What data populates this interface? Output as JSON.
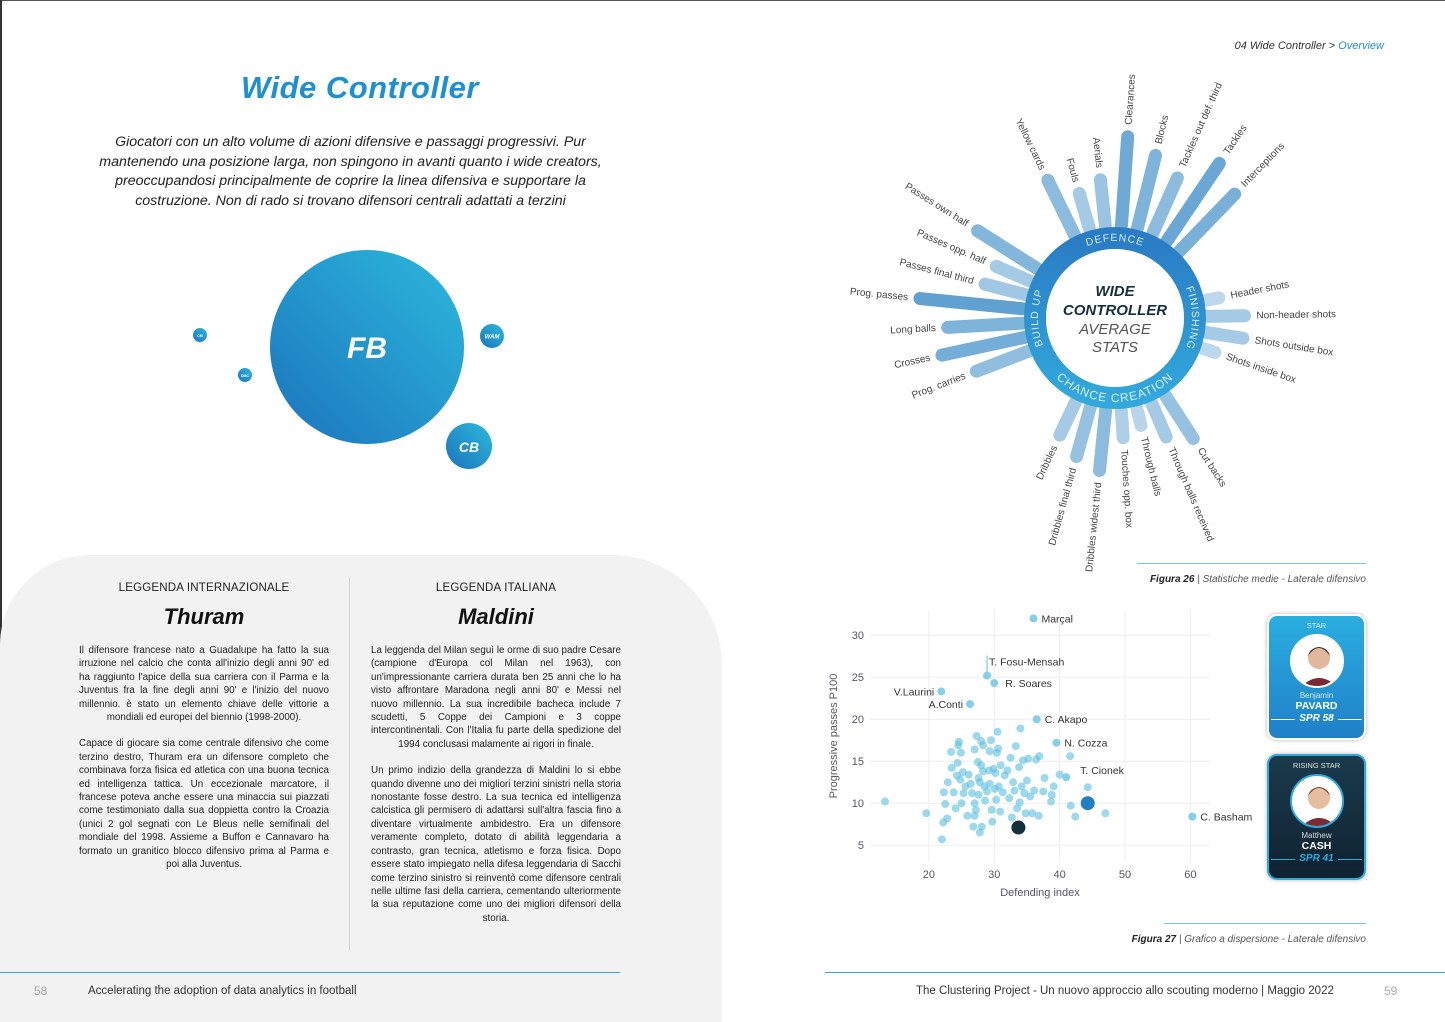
{
  "left_page": {
    "title": "Wide Controller",
    "intro": "Giocatori con un alto volume di azioni difensive e passaggi progressivi. Pur mantenendo una posizione larga, non spingono in avanti quanto i wide creators, preoccupandosi principalmente de coprire la linea difensiva e supportare la costruzione. Non di rado si trovano difensori centrali adattati a terzini",
    "bubbles": [
      {
        "label": "FB"
      },
      {
        "label": "CB"
      },
      {
        "label": "WAM"
      },
      {
        "label": "CM"
      },
      {
        "label": "DMC"
      }
    ],
    "legends": [
      {
        "heading": "LEGGENDA INTERNAZIONALE",
        "name": "Thuram",
        "paragraphs": [
          "Il difensore francese nato a Guadalupe ha fatto la sua irruzione nel calcio che conta all'inizio degli anni 90' ed ha raggiunto l'apice della sua carriera con il Parma e la Juventus fra la fine degli anni 90' e l'inizio del nuovo millennio. è stato un elemento chiave delle vittorie a mondiali ed europei del biennio (1998-2000).",
          "Capace di giocare sia come centrale difensivo che come terzino destro, Thuram era un difensore completo che combinava forza fisica ed atletica con una buona tecnica ed intelligenza tattica. Un eccezionale marcatore, il francese poteva anche essere una minaccia sui piazzati come testimoniato dalla sua doppietta contro la Croazia (unici 2 gol segnati con Le Bleus nelle semifinali del mondiale del 1998. Assieme a Buffon e Cannavaro ha formato un granitico blocco difensivo prima al Parma e poi alla Juventus."
        ]
      },
      {
        "heading": "LEGGENDA ITALIANA",
        "name": "Maldini",
        "paragraphs": [
          "La leggenda del Milan seguì le orme di suo padre Cesare (campione d'Europa col Milan nel 1963), con un'impressionante carriera durata ben 25 anni che lo ha visto affrontare Maradona negli anni 80' e Messi nel nuovo millennio. La sua incredibile bacheca include 7 scudetti, 5 Coppe dei Campioni e 3 coppe intercontinentali. Con l'Italia fu parte della spedizione del 1994 conclusasi malamente ai rigori in finale.",
          "Un primo indizio della grandezza di Maldini lo si ebbe quando divenne uno dei migliori terzini sinistri nella storia nonostante fosse destro. La sua tecnica ed intelligenza calcistica gli permisero di adattarsi sull'altra fascia fino a diventare virtualmente ambidestro. Era un difensore veramente completo, dotato di abilità leggendaria a contrasto, gran tecnica, atletismo e forza fisica. Dopo essere stato impiegato nella difesa leggendaria di Sacchi come terzino sinistro si reinventò come difensore centrali nelle ultime fasi della carriera, cementando ulteriormente la sua reputazione come uno dei migliori difensori della storia."
        ]
      }
    ],
    "page_number": "58",
    "footer": "Accelerating the adoption of data analytics in football"
  },
  "right_page": {
    "breadcrumb": {
      "section": "04 Wide Controller >",
      "current": "Overview"
    },
    "figure26": {
      "number": "Figura 26",
      "caption": "| Statistiche medie - Laterale difensivo"
    },
    "figure27": {
      "number": "Figura 27",
      "caption": "| Grafico a dispersione - Laterale difensivo"
    },
    "page_number": "59",
    "footer": "The Clustering Project - Un nuovo approccio allo scouting moderno | Maggio 2022",
    "cards": [
      {
        "tag": "STAR",
        "first": "Benjamin",
        "last": "PAVARD",
        "spr": "SPR 58",
        "color": "#1f8fd3"
      },
      {
        "tag": "RISING STAR",
        "first": "Matthew",
        "last": "CASH",
        "spr": "SPR 41",
        "color": "#14303f"
      }
    ]
  },
  "chart_data": [
    {
      "type": "radial-bar",
      "title_bold": [
        "WIDE",
        "CONTROLLER"
      ],
      "title_light": [
        "AVERAGE",
        "STATS"
      ],
      "groups": [
        {
          "name": "DEFENCE",
          "bars": [
            [
              "Yellow cards",
              0.55
            ],
            [
              "Fouls",
              0.3
            ],
            [
              "Aerials",
              0.4
            ],
            [
              "Clearances",
              0.85
            ],
            [
              "Blocks",
              0.7
            ],
            [
              "Tackles out def. third",
              0.55
            ],
            [
              "Tackles",
              0.9
            ],
            [
              "Interceptions",
              0.75
            ]
          ]
        },
        {
          "name": "FINISHING",
          "bars": [
            [
              "Header shots",
              0.05
            ],
            [
              "Non-header shots",
              0.3
            ],
            [
              "Shots outside box",
              0.3
            ],
            [
              "Shots inside box",
              0.05
            ]
          ]
        },
        {
          "name": "CHANCE CREATION",
          "bars": [
            [
              "Cut backs",
              0.45
            ],
            [
              "Through balls received",
              0.3
            ],
            [
              "Through balls",
              0.1
            ],
            [
              "Touches opp. box",
              0.2
            ],
            [
              "Dribbles widest third",
              0.55
            ],
            [
              "Dribbles final third",
              0.45
            ],
            [
              "Dribbles",
              0.3
            ]
          ]
        },
        {
          "name": "BUILD UP",
          "bars": [
            [
              "Prog. carries",
              0.5
            ],
            [
              "Crosses",
              0.8
            ],
            [
              "Long balls",
              0.7
            ],
            [
              "Prog. passes",
              1.0
            ],
            [
              "Passes final third",
              0.35
            ],
            [
              "Passes opp. half",
              0.3
            ],
            [
              "Passes own half",
              0.65
            ]
          ]
        }
      ]
    },
    {
      "type": "scatter",
      "xlabel": "Defending index",
      "ylabel": "Progressive passes P100",
      "xlim": [
        11,
        63
      ],
      "ylim": [
        3,
        33
      ],
      "xticks": [
        20,
        30,
        40,
        50,
        60
      ],
      "yticks": [
        5,
        10,
        15,
        20,
        25,
        30
      ],
      "grid": true,
      "point_color": "#5bc0e0",
      "labeled": [
        {
          "name": "Marçal",
          "x": 36,
          "y": 32
        },
        {
          "name": "T. Fosu-Mensah",
          "x": 28.9,
          "y": 25.2
        },
        {
          "name": "R. Soares",
          "x": 30,
          "y": 24.3
        },
        {
          "name": "V.Laurini",
          "x": 21.9,
          "y": 23.3
        },
        {
          "name": "A.Conti",
          "x": 26.3,
          "y": 21.8
        },
        {
          "name": "C. Akapo",
          "x": 36.5,
          "y": 20
        },
        {
          "name": "N. Cozza",
          "x": 39.5,
          "y": 17.2
        },
        {
          "name": "T. Cionek",
          "x": 41,
          "y": 13.1
        },
        {
          "name": "C. Basham",
          "x": 60.3,
          "y": 8.4
        }
      ],
      "highlighted": [
        {
          "player": "PAVARD",
          "x": 44.3,
          "y": 10,
          "color": "#1f7fc2"
        },
        {
          "player": "CASH",
          "x": 33.7,
          "y": 7.1,
          "color": "#14303f"
        }
      ],
      "points": [
        [
          13.3,
          10.2
        ],
        [
          19.6,
          8.8
        ],
        [
          22,
          5.7
        ],
        [
          22.2,
          7.7
        ],
        [
          22.5,
          9.9
        ],
        [
          22.3,
          11.3
        ],
        [
          22.9,
          12.5
        ],
        [
          22.8,
          8.2
        ],
        [
          23.4,
          16.1
        ],
        [
          23.5,
          14.2
        ],
        [
          23.8,
          11.3
        ],
        [
          24.1,
          9.4
        ],
        [
          24.3,
          13.3
        ],
        [
          24.4,
          14.8
        ],
        [
          24.5,
          16.9
        ],
        [
          24.6,
          17.3
        ],
        [
          24.8,
          12.8
        ],
        [
          24.9,
          16
        ],
        [
          25,
          10
        ],
        [
          25.2,
          13.7
        ],
        [
          25.3,
          11.2
        ],
        [
          25.6,
          12
        ],
        [
          25.9,
          8.5
        ],
        [
          26.1,
          13.4
        ],
        [
          26.4,
          12.3
        ],
        [
          26.6,
          11.2
        ],
        [
          26.8,
          7.2
        ],
        [
          27,
          8.5
        ],
        [
          27,
          10
        ],
        [
          27,
          16.4
        ],
        [
          27.2,
          9.2
        ],
        [
          27.3,
          18
        ],
        [
          27.5,
          14.9
        ],
        [
          27.6,
          13
        ],
        [
          27.6,
          11
        ],
        [
          27.8,
          12.5
        ],
        [
          27.8,
          6.5
        ],
        [
          28,
          17.4
        ],
        [
          28,
          14.5
        ],
        [
          28.1,
          7.2
        ],
        [
          28.3,
          16.9
        ],
        [
          28.3,
          13.8
        ],
        [
          28.5,
          12
        ],
        [
          28.6,
          10.3
        ],
        [
          28.9,
          11.4
        ],
        [
          29.2,
          13.9
        ],
        [
          29.3,
          12.3
        ],
        [
          29.3,
          16.2
        ],
        [
          29.5,
          17.5
        ],
        [
          29.6,
          9.2
        ],
        [
          29.7,
          7.8
        ],
        [
          29.9,
          14.1
        ],
        [
          30.1,
          11.7
        ],
        [
          30.2,
          13.6
        ],
        [
          30.3,
          10.4
        ],
        [
          30.4,
          16
        ],
        [
          30.5,
          18.5
        ],
        [
          30.6,
          16.5
        ],
        [
          30.7,
          12
        ],
        [
          30.9,
          9
        ],
        [
          31,
          14.5
        ],
        [
          31.3,
          11.3
        ],
        [
          31.6,
          13.3
        ],
        [
          32,
          13.9
        ],
        [
          32.3,
          10.6
        ],
        [
          32.5,
          15.4
        ],
        [
          32.7,
          8.3
        ],
        [
          32.9,
          12.5
        ],
        [
          33.1,
          11.5
        ],
        [
          33.3,
          16.8
        ],
        [
          33.5,
          9.4
        ],
        [
          33.8,
          14.3
        ],
        [
          33.9,
          10.1
        ],
        [
          34,
          18.9
        ],
        [
          34.2,
          12
        ],
        [
          34.4,
          15.1
        ],
        [
          34.6,
          11.2
        ],
        [
          34.8,
          8.8
        ],
        [
          35,
          12.7
        ],
        [
          35.2,
          15.3
        ],
        [
          35.5,
          10.8
        ],
        [
          35.8,
          8.8
        ],
        [
          36.1,
          11.5
        ],
        [
          36.4,
          15.2
        ],
        [
          36.8,
          8.5
        ],
        [
          36.9,
          15.6
        ],
        [
          37.5,
          11.4
        ],
        [
          37.7,
          13
        ],
        [
          38.7,
          10.2
        ],
        [
          38.8,
          11
        ],
        [
          39.1,
          12
        ],
        [
          40,
          13.4
        ],
        [
          41.7,
          9.7
        ],
        [
          41.6,
          15.6
        ],
        [
          42.4,
          8.4
        ],
        [
          44.3,
          11.9
        ],
        [
          47,
          8.8
        ]
      ]
    }
  ]
}
